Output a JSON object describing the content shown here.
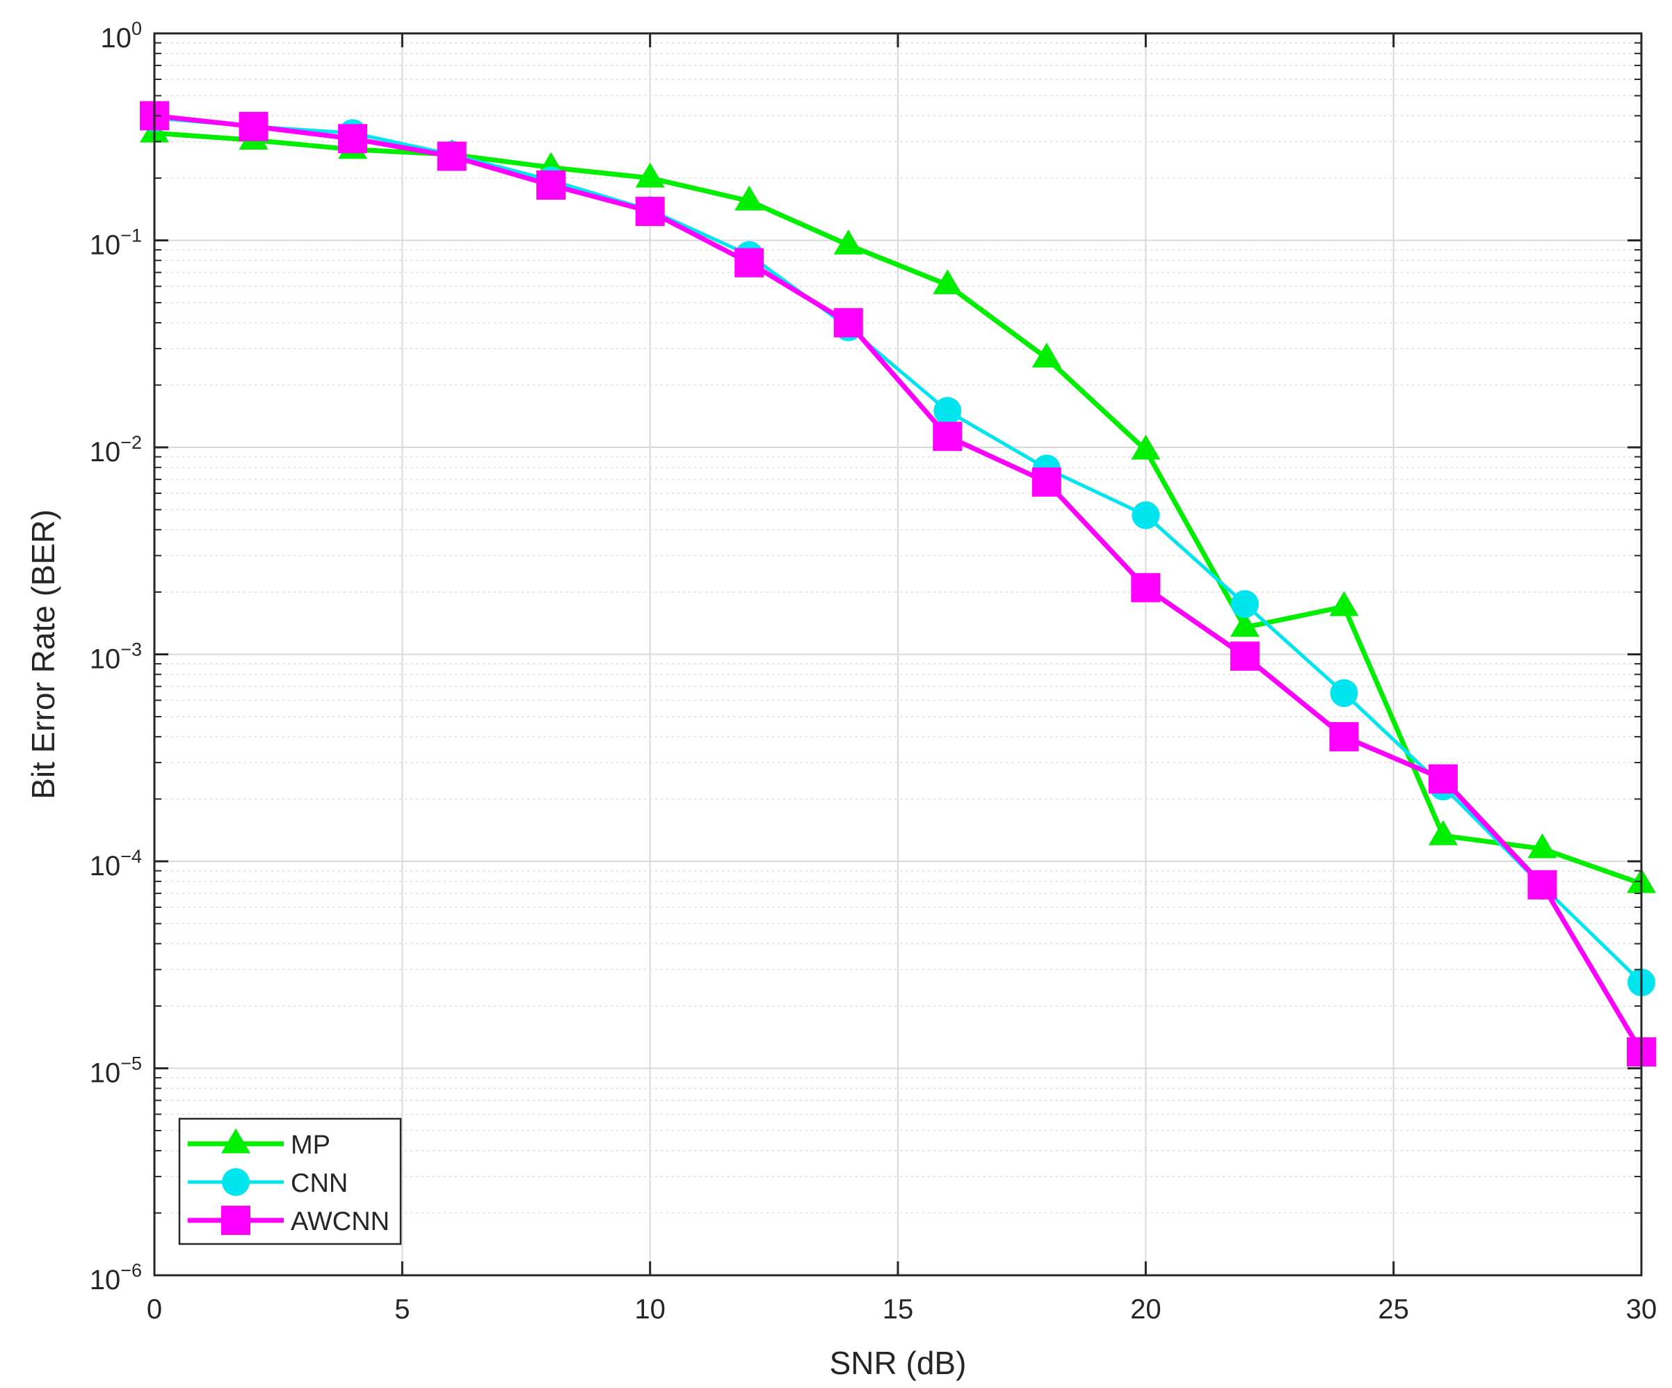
{
  "chart_data": {
    "type": "line",
    "xlabel": "SNR (dB)",
    "ylabel": "Bit Error Rate (BER)",
    "xlim": [
      0,
      30
    ],
    "ylim": [
      1e-06,
      1
    ],
    "yscale": "log",
    "grid": true,
    "legend_position": "bottom-left",
    "x_ticks": [
      {
        "value": 0,
        "label": "0"
      },
      {
        "value": 5,
        "label": "5"
      },
      {
        "value": 10,
        "label": "10"
      },
      {
        "value": 15,
        "label": "15"
      },
      {
        "value": 20,
        "label": "20"
      },
      {
        "value": 25,
        "label": "25"
      },
      {
        "value": 30,
        "label": "30"
      }
    ],
    "y_ticks": [
      {
        "value": 1,
        "base": "10",
        "exp": "0"
      },
      {
        "value": 0.1,
        "base": "10",
        "exp": "−1"
      },
      {
        "value": 0.01,
        "base": "10",
        "exp": "−2"
      },
      {
        "value": 0.001,
        "base": "10",
        "exp": "−3"
      },
      {
        "value": 0.0001,
        "base": "10",
        "exp": "−4"
      },
      {
        "value": 1e-05,
        "base": "10",
        "exp": "−5"
      },
      {
        "value": 1e-06,
        "base": "10",
        "exp": "−6"
      }
    ],
    "series": [
      {
        "name": "MP",
        "color": "#00ee00",
        "marker": "triangle",
        "x": [
          0,
          2,
          4,
          6,
          8,
          10,
          12,
          14,
          16,
          18,
          20,
          22,
          24,
          26,
          28,
          30
        ],
        "y": [
          0.33,
          0.305,
          0.275,
          0.26,
          0.225,
          0.2,
          0.155,
          0.095,
          0.061,
          0.027,
          0.0097,
          0.00135,
          0.0017,
          0.000133,
          0.000115,
          7.8e-05
        ]
      },
      {
        "name": "CNN",
        "color": "#00e5ee",
        "marker": "circle",
        "x": [
          0,
          2,
          4,
          6,
          8,
          10,
          12,
          14,
          16,
          18,
          20,
          22,
          24,
          26,
          28,
          30
        ],
        "y": [
          0.39,
          0.355,
          0.33,
          0.26,
          0.195,
          0.14,
          0.085,
          0.038,
          0.015,
          0.0079,
          0.0047,
          0.00175,
          0.00065,
          0.00023,
          7.6e-05,
          2.6e-05
        ]
      },
      {
        "name": "AWCNN",
        "color": "#ff00ff",
        "marker": "square",
        "x": [
          0,
          2,
          4,
          6,
          8,
          10,
          12,
          14,
          16,
          18,
          20,
          22,
          24,
          26,
          28,
          30
        ],
        "y": [
          0.4,
          0.355,
          0.31,
          0.255,
          0.185,
          0.138,
          0.078,
          0.04,
          0.0113,
          0.0068,
          0.0021,
          0.00098,
          0.0004,
          0.00025,
          7.7e-05,
          1.2e-05
        ]
      }
    ]
  }
}
